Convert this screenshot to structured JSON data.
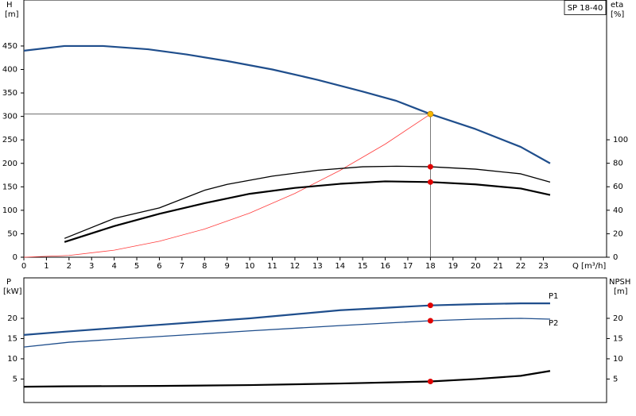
{
  "chart_data": [
    {
      "type": "line",
      "label": "SP 18-40",
      "y_label": "H",
      "y_unit": "[m]",
      "y2_label": "eta",
      "y2_unit": "[%]",
      "x_label": "Q [m³/h]",
      "xlim": [
        0,
        25.8
      ],
      "ylim": [
        0,
        548
      ],
      "y2lim": [
        0,
        219
      ],
      "xticks": [
        0,
        1,
        2,
        3,
        4,
        5,
        6,
        7,
        8,
        9,
        10,
        11,
        12,
        13,
        14,
        15,
        16,
        17,
        18,
        19,
        20,
        21,
        22,
        23
      ],
      "yticks": [
        0,
        50,
        100,
        150,
        200,
        250,
        300,
        350,
        400,
        450
      ],
      "y2ticks": [
        0,
        20,
        40,
        60,
        80,
        100
      ],
      "highlight_x": 18,
      "series": [
        {
          "color": "#1f4e8c",
          "weight": "bold",
          "crosshair": true,
          "marker_color": "#f5b800",
          "x": [
            0,
            1.8,
            3.5,
            5.5,
            7.2,
            9,
            11,
            13,
            15,
            16.5,
            18,
            20,
            22,
            23.3
          ],
          "values": [
            440,
            450,
            450,
            443,
            432,
            418,
            400,
            378,
            353,
            333,
            305,
            273,
            235,
            200
          ]
        },
        {
          "color": "#ff3b3b",
          "weight": "thin",
          "x": [
            0,
            2,
            4,
            6,
            8,
            10,
            12,
            14,
            16,
            18
          ],
          "values": [
            0,
            3.8,
            15,
            34,
            60,
            94,
            136,
            185,
            241,
            305
          ]
        },
        {
          "color": "#000000",
          "weight": "normal",
          "axis": "y2",
          "marker_color": "#e00000",
          "x": [
            1.8,
            4,
            6,
            8,
            9,
            11,
            13,
            15,
            16.5,
            18,
            20,
            22,
            23.3
          ],
          "values": [
            16,
            33,
            42,
            57,
            62,
            69,
            74,
            77,
            77.5,
            77,
            75,
            71,
            64
          ]
        },
        {
          "color": "#000000",
          "weight": "bold",
          "axis": "y2",
          "marker_color": "#e00000",
          "x": [
            1.8,
            4,
            6,
            8,
            10,
            12,
            14,
            16,
            18,
            20,
            22,
            23.3
          ],
          "values": [
            13,
            26.5,
            37,
            46,
            54,
            59,
            62.5,
            64.6,
            64,
            62,
            58.5,
            53
          ]
        }
      ]
    },
    {
      "type": "line",
      "y_label": "P",
      "y_unit": "[kW]",
      "y2_label": "NPSH",
      "y2_unit": "[m]",
      "xlim": [
        0,
        25.8
      ],
      "ylim": [
        -0.8,
        30
      ],
      "y2lim": [
        -0.8,
        30
      ],
      "yticks": [
        5,
        10,
        15,
        20
      ],
      "y2ticks": [
        5,
        10,
        15,
        20
      ],
      "highlight_x": 18,
      "series": [
        {
          "name": "P1",
          "color": "#1f4e8c",
          "weight": "bold",
          "marker_color": "#e00000",
          "x": [
            0,
            1.8,
            5,
            8,
            10,
            12,
            14,
            16,
            18,
            20,
            22,
            23.3
          ],
          "values": [
            15.9,
            16.7,
            18,
            19.2,
            20,
            21,
            22,
            22.6,
            23.2,
            23.5,
            23.7,
            23.7
          ]
        },
        {
          "name": "P2",
          "color": "#1f4e8c",
          "weight": "normal",
          "marker_color": "#e00000",
          "x": [
            0,
            2,
            6,
            10,
            14,
            18,
            20,
            22,
            23.3
          ],
          "values": [
            12.9,
            14.1,
            15.5,
            16.9,
            18.2,
            19.4,
            19.8,
            20,
            19.8
          ]
        },
        {
          "color": "#000000",
          "weight": "bold",
          "axis": "y2",
          "marker_color": "#e00000",
          "x": [
            0,
            1.8,
            6,
            10,
            14,
            18,
            20,
            22,
            23.3
          ],
          "values": [
            3.1,
            3.2,
            3.3,
            3.5,
            3.9,
            4.4,
            5,
            5.8,
            7
          ]
        }
      ]
    }
  ]
}
